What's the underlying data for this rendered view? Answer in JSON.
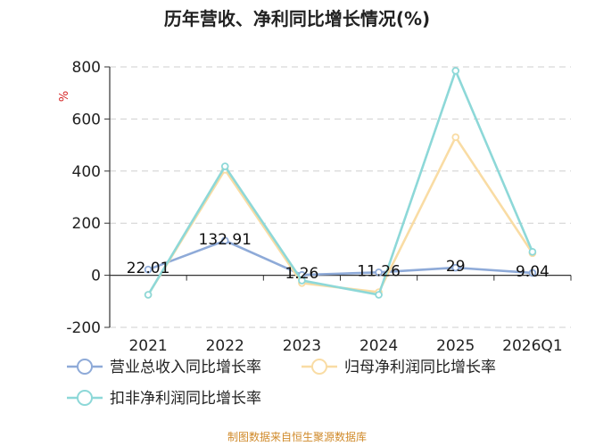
{
  "chart_data": {
    "type": "line",
    "title": "历年营收、净利同比增长情况(%)",
    "ylabel": "%",
    "ylim": [
      -200,
      800
    ],
    "yticks": [
      -200,
      0,
      200,
      400,
      600,
      800
    ],
    "categories": [
      "2021",
      "2022",
      "2023",
      "2024",
      "2025",
      "2026Q1"
    ],
    "grid": true,
    "legend_position": "bottom-left",
    "series": [
      {
        "name": "营业总收入同比增长率",
        "values": [
          22.01,
          132.91,
          1.26,
          11.26,
          29,
          9.04
        ],
        "labels": [
          "22.01",
          "132.91",
          "1.26",
          "11.26",
          "29",
          "9.04"
        ],
        "color": "#8eaad8"
      },
      {
        "name": "归母净利润同比增长率",
        "values": [
          -75,
          405,
          -30,
          -65,
          530,
          85
        ],
        "color": "#f9dca4"
      },
      {
        "name": "扣非净利润同比增长率",
        "values": [
          -75,
          418,
          -20,
          -75,
          785,
          90
        ],
        "color": "#8dd8d8"
      }
    ],
    "source": "制图数据来自恒生聚源数据库"
  }
}
